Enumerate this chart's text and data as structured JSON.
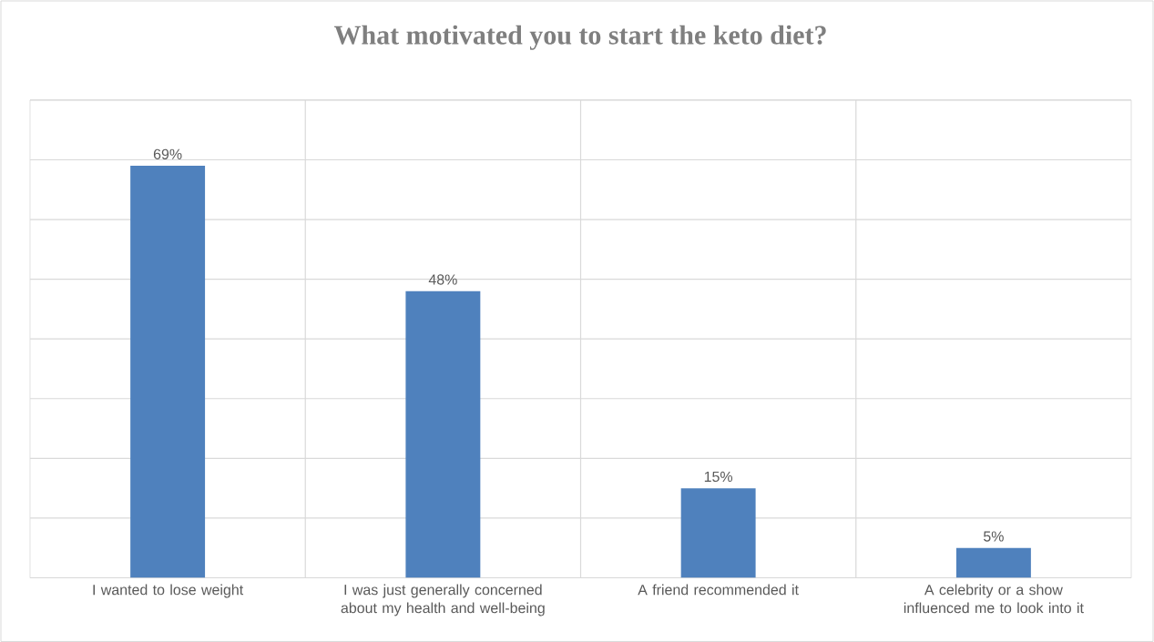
{
  "chart_data": {
    "type": "bar",
    "title": "What motivated you to start the keto diet?",
    "categories": [
      "I wanted to lose weight",
      "I was just generally concerned about my health and well-being",
      "A friend recommended it",
      "A celebrity or a show influenced me to look into it"
    ],
    "values": [
      69,
      48,
      15,
      5
    ],
    "value_labels": [
      "69%",
      "48%",
      "15%",
      "5%"
    ],
    "color": "#4f81bd",
    "ylim": [
      0,
      80
    ],
    "yticks": [
      {
        "value": 0,
        "label": null
      },
      {
        "value": 10,
        "label": null
      },
      {
        "value": 20,
        "label": null
      },
      {
        "value": 30,
        "label": null
      },
      {
        "value": 40,
        "label": null
      },
      {
        "value": 50,
        "label": null
      },
      {
        "value": 60,
        "label": null
      },
      {
        "value": 70,
        "label": null
      },
      {
        "value": 80,
        "label": null
      }
    ],
    "tick_labels": "x",
    "grid": true
  }
}
